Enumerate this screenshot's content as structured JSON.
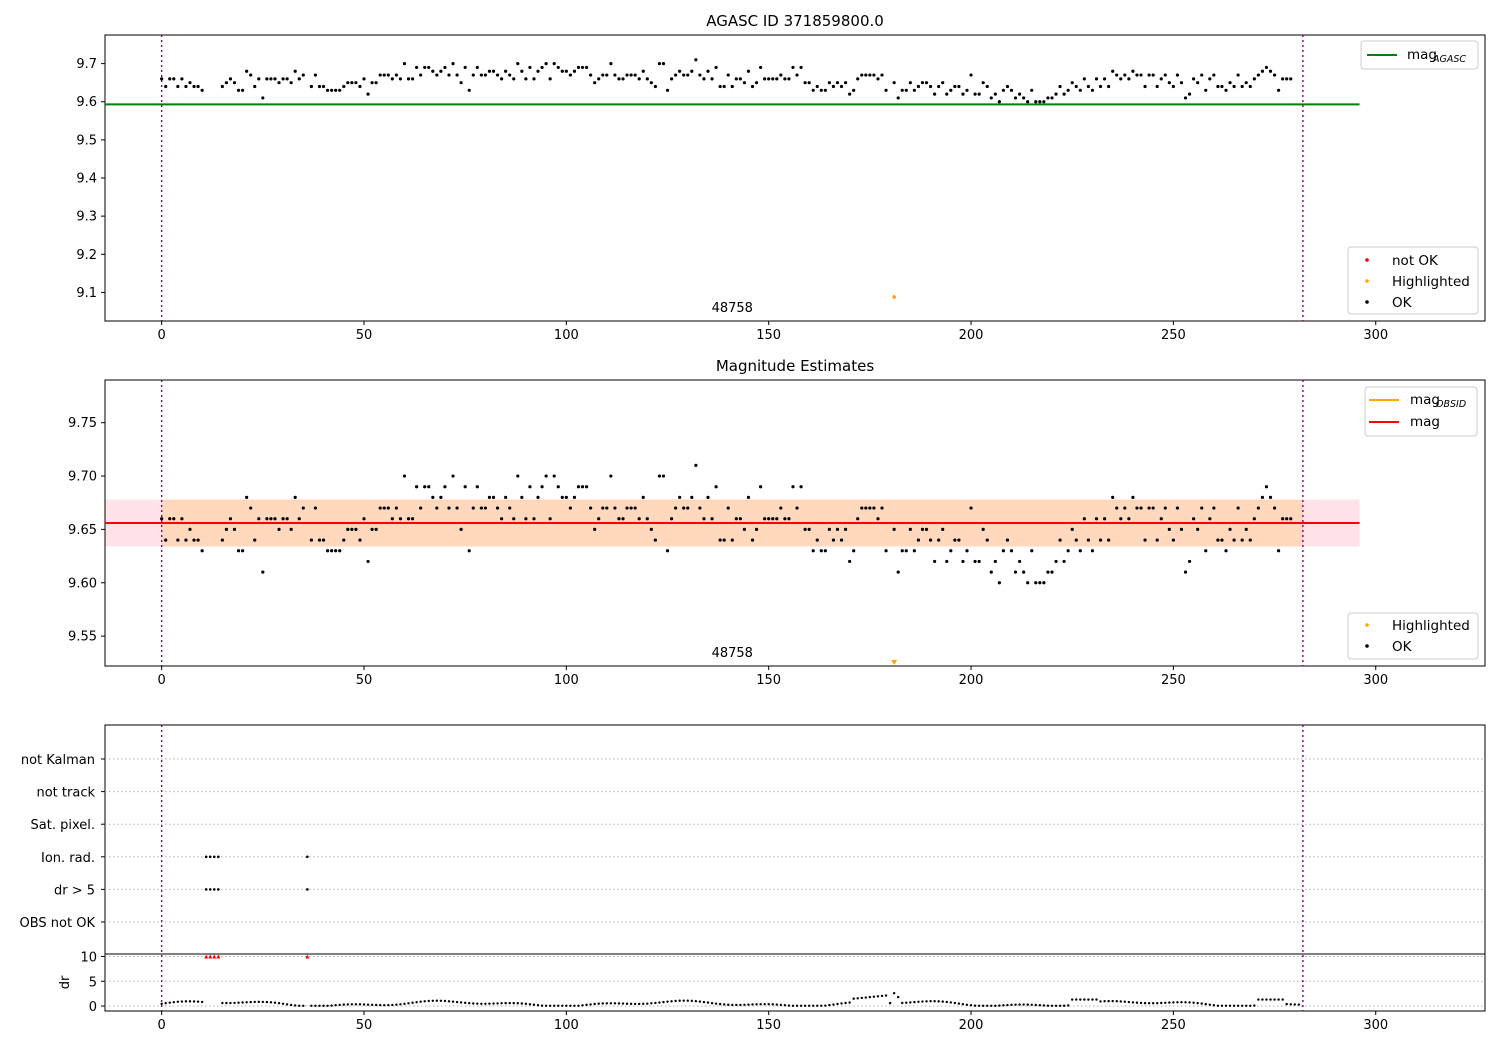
{
  "chart_data": [
    {
      "type": "scatter",
      "title": "AGASC ID 371859800.0",
      "xlim": [
        -14,
        327
      ],
      "ylim": [
        9.025,
        9.775
      ],
      "xticks": [
        0,
        50,
        100,
        150,
        200,
        250,
        300
      ],
      "yticks": [
        9.1,
        9.2,
        9.3,
        9.4,
        9.5,
        9.6,
        9.7
      ],
      "obsid_label": {
        "text": "48758",
        "x": 141
      },
      "vlines": [
        0,
        282
      ],
      "hline": {
        "name": "mag_AGASC",
        "y": 9.593,
        "x_range": [
          -14,
          296
        ],
        "color": "#008000"
      },
      "legend_upper": [
        {
          "label": "mag",
          "sub": "AGASC",
          "color": "#008000",
          "kind": "line"
        }
      ],
      "legend_lower": [
        {
          "label": "not OK",
          "color": "#ff0000",
          "kind": "dot"
        },
        {
          "label": "Highlighted",
          "color": "#ffa500",
          "kind": "dot"
        },
        {
          "label": "OK",
          "color": "#000000",
          "kind": "dot"
        }
      ],
      "highlighted_points": [
        {
          "x": 181,
          "y": 9.088
        }
      ],
      "ok_points": [
        [
          0,
          9.66
        ],
        [
          1,
          9.64
        ],
        [
          2,
          9.66
        ],
        [
          3,
          9.66
        ],
        [
          4,
          9.64
        ],
        [
          5,
          9.66
        ],
        [
          6,
          9.64
        ],
        [
          7,
          9.65
        ],
        [
          8,
          9.64
        ],
        [
          9,
          9.64
        ],
        [
          10,
          9.63
        ],
        [
          15,
          9.64
        ],
        [
          16,
          9.65
        ],
        [
          17,
          9.66
        ],
        [
          18,
          9.65
        ],
        [
          19,
          9.63
        ],
        [
          20,
          9.63
        ],
        [
          21,
          9.68
        ],
        [
          22,
          9.67
        ],
        [
          23,
          9.64
        ],
        [
          24,
          9.66
        ],
        [
          25,
          9.61
        ],
        [
          26,
          9.66
        ],
        [
          27,
          9.66
        ],
        [
          28,
          9.66
        ],
        [
          29,
          9.65
        ],
        [
          30,
          9.66
        ],
        [
          31,
          9.66
        ],
        [
          32,
          9.65
        ],
        [
          33,
          9.68
        ],
        [
          34,
          9.66
        ],
        [
          35,
          9.67
        ],
        [
          37,
          9.64
        ],
        [
          38,
          9.67
        ],
        [
          39,
          9.64
        ],
        [
          40,
          9.64
        ],
        [
          41,
          9.63
        ],
        [
          42,
          9.63
        ],
        [
          43,
          9.63
        ],
        [
          44,
          9.63
        ],
        [
          45,
          9.64
        ],
        [
          46,
          9.65
        ],
        [
          47,
          9.65
        ],
        [
          48,
          9.65
        ],
        [
          49,
          9.64
        ],
        [
          50,
          9.66
        ],
        [
          51,
          9.62
        ],
        [
          52,
          9.65
        ],
        [
          53,
          9.65
        ],
        [
          54,
          9.67
        ],
        [
          55,
          9.67
        ],
        [
          56,
          9.67
        ],
        [
          57,
          9.66
        ],
        [
          58,
          9.67
        ],
        [
          59,
          9.66
        ],
        [
          60,
          9.7
        ],
        [
          61,
          9.66
        ],
        [
          62,
          9.66
        ],
        [
          63,
          9.69
        ],
        [
          64,
          9.67
        ],
        [
          65,
          9.69
        ],
        [
          66,
          9.69
        ],
        [
          67,
          9.68
        ],
        [
          68,
          9.67
        ],
        [
          69,
          9.68
        ],
        [
          70,
          9.69
        ],
        [
          71,
          9.67
        ],
        [
          72,
          9.7
        ],
        [
          73,
          9.67
        ],
        [
          74,
          9.65
        ],
        [
          75,
          9.69
        ],
        [
          76,
          9.63
        ],
        [
          77,
          9.67
        ],
        [
          78,
          9.69
        ],
        [
          79,
          9.67
        ],
        [
          80,
          9.67
        ],
        [
          81,
          9.68
        ],
        [
          82,
          9.68
        ],
        [
          83,
          9.67
        ],
        [
          84,
          9.66
        ],
        [
          85,
          9.68
        ],
        [
          86,
          9.67
        ],
        [
          87,
          9.66
        ],
        [
          88,
          9.7
        ],
        [
          89,
          9.68
        ],
        [
          90,
          9.66
        ],
        [
          91,
          9.69
        ],
        [
          92,
          9.66
        ],
        [
          93,
          9.68
        ],
        [
          94,
          9.69
        ],
        [
          95,
          9.7
        ],
        [
          96,
          9.66
        ],
        [
          97,
          9.7
        ],
        [
          98,
          9.69
        ],
        [
          99,
          9.68
        ],
        [
          100,
          9.68
        ],
        [
          101,
          9.67
        ],
        [
          102,
          9.68
        ],
        [
          103,
          9.69
        ],
        [
          104,
          9.69
        ],
        [
          105,
          9.69
        ],
        [
          106,
          9.67
        ],
        [
          107,
          9.65
        ],
        [
          108,
          9.66
        ],
        [
          109,
          9.67
        ],
        [
          110,
          9.67
        ],
        [
          111,
          9.7
        ],
        [
          112,
          9.67
        ],
        [
          113,
          9.66
        ],
        [
          114,
          9.66
        ],
        [
          115,
          9.67
        ],
        [
          116,
          9.67
        ],
        [
          117,
          9.67
        ],
        [
          118,
          9.66
        ],
        [
          119,
          9.68
        ],
        [
          120,
          9.66
        ],
        [
          121,
          9.65
        ],
        [
          122,
          9.64
        ],
        [
          123,
          9.7
        ],
        [
          124,
          9.7
        ],
        [
          125,
          9.63
        ],
        [
          126,
          9.66
        ],
        [
          127,
          9.67
        ],
        [
          128,
          9.68
        ],
        [
          129,
          9.67
        ],
        [
          130,
          9.67
        ],
        [
          131,
          9.68
        ],
        [
          132,
          9.71
        ],
        [
          133,
          9.67
        ],
        [
          134,
          9.66
        ],
        [
          135,
          9.68
        ],
        [
          136,
          9.66
        ],
        [
          137,
          9.69
        ],
        [
          138,
          9.64
        ],
        [
          139,
          9.64
        ],
        [
          140,
          9.67
        ],
        [
          141,
          9.64
        ],
        [
          142,
          9.66
        ],
        [
          143,
          9.66
        ],
        [
          144,
          9.65
        ],
        [
          145,
          9.68
        ],
        [
          146,
          9.64
        ],
        [
          147,
          9.65
        ],
        [
          148,
          9.69
        ],
        [
          149,
          9.66
        ],
        [
          150,
          9.66
        ],
        [
          151,
          9.66
        ],
        [
          152,
          9.66
        ],
        [
          153,
          9.67
        ],
        [
          154,
          9.66
        ],
        [
          155,
          9.66
        ],
        [
          156,
          9.69
        ],
        [
          157,
          9.67
        ],
        [
          158,
          9.69
        ],
        [
          159,
          9.65
        ],
        [
          160,
          9.65
        ],
        [
          161,
          9.63
        ],
        [
          162,
          9.64
        ],
        [
          163,
          9.63
        ],
        [
          164,
          9.63
        ],
        [
          165,
          9.65
        ],
        [
          166,
          9.64
        ],
        [
          167,
          9.65
        ],
        [
          168,
          9.64
        ],
        [
          169,
          9.65
        ],
        [
          170,
          9.62
        ],
        [
          171,
          9.63
        ],
        [
          172,
          9.66
        ],
        [
          173,
          9.67
        ],
        [
          174,
          9.67
        ],
        [
          175,
          9.67
        ],
        [
          176,
          9.67
        ],
        [
          177,
          9.66
        ],
        [
          178,
          9.67
        ],
        [
          179,
          9.63
        ],
        [
          181,
          9.65
        ],
        [
          182,
          9.61
        ],
        [
          183,
          9.63
        ],
        [
          184,
          9.63
        ],
        [
          185,
          9.65
        ],
        [
          186,
          9.63
        ],
        [
          187,
          9.64
        ],
        [
          188,
          9.65
        ],
        [
          189,
          9.65
        ],
        [
          190,
          9.64
        ],
        [
          191,
          9.62
        ],
        [
          192,
          9.64
        ],
        [
          193,
          9.65
        ],
        [
          194,
          9.62
        ],
        [
          195,
          9.63
        ],
        [
          196,
          9.64
        ],
        [
          197,
          9.64
        ],
        [
          198,
          9.62
        ],
        [
          199,
          9.63
        ],
        [
          200,
          9.67
        ],
        [
          201,
          9.62
        ],
        [
          202,
          9.62
        ],
        [
          203,
          9.65
        ],
        [
          204,
          9.64
        ],
        [
          205,
          9.61
        ],
        [
          206,
          9.62
        ],
        [
          207,
          9.6
        ],
        [
          208,
          9.63
        ],
        [
          209,
          9.64
        ],
        [
          210,
          9.63
        ],
        [
          211,
          9.61
        ],
        [
          212,
          9.62
        ],
        [
          213,
          9.61
        ],
        [
          214,
          9.6
        ],
        [
          215,
          9.63
        ],
        [
          216,
          9.6
        ],
        [
          217,
          9.6
        ],
        [
          218,
          9.6
        ],
        [
          219,
          9.61
        ],
        [
          220,
          9.61
        ],
        [
          221,
          9.62
        ],
        [
          222,
          9.64
        ],
        [
          223,
          9.62
        ],
        [
          224,
          9.63
        ],
        [
          225,
          9.65
        ],
        [
          226,
          9.64
        ],
        [
          227,
          9.63
        ],
        [
          228,
          9.66
        ],
        [
          229,
          9.64
        ],
        [
          230,
          9.63
        ],
        [
          231,
          9.66
        ],
        [
          232,
          9.64
        ],
        [
          233,
          9.66
        ],
        [
          234,
          9.64
        ],
        [
          235,
          9.68
        ],
        [
          236,
          9.67
        ],
        [
          237,
          9.66
        ],
        [
          238,
          9.67
        ],
        [
          239,
          9.66
        ],
        [
          240,
          9.68
        ],
        [
          241,
          9.67
        ],
        [
          242,
          9.67
        ],
        [
          243,
          9.64
        ],
        [
          244,
          9.67
        ],
        [
          245,
          9.67
        ],
        [
          246,
          9.64
        ],
        [
          247,
          9.66
        ],
        [
          248,
          9.67
        ],
        [
          249,
          9.65
        ],
        [
          250,
          9.64
        ],
        [
          251,
          9.67
        ],
        [
          252,
          9.65
        ],
        [
          253,
          9.61
        ],
        [
          254,
          9.62
        ],
        [
          255,
          9.66
        ],
        [
          256,
          9.65
        ],
        [
          257,
          9.67
        ],
        [
          258,
          9.63
        ],
        [
          259,
          9.66
        ],
        [
          260,
          9.67
        ],
        [
          261,
          9.64
        ],
        [
          262,
          9.64
        ],
        [
          263,
          9.63
        ],
        [
          264,
          9.65
        ],
        [
          265,
          9.64
        ],
        [
          266,
          9.67
        ],
        [
          267,
          9.64
        ],
        [
          268,
          9.65
        ],
        [
          269,
          9.64
        ],
        [
          270,
          9.66
        ],
        [
          271,
          9.67
        ],
        [
          272,
          9.68
        ],
        [
          273,
          9.69
        ],
        [
          274,
          9.68
        ],
        [
          275,
          9.67
        ],
        [
          276,
          9.63
        ],
        [
          277,
          9.66
        ],
        [
          278,
          9.66
        ],
        [
          279,
          9.66
        ]
      ]
    },
    {
      "type": "scatter",
      "title": "Magnitude Estimates",
      "xlim": [
        -14,
        327
      ],
      "ylim": [
        9.522,
        9.79
      ],
      "xticks": [
        0,
        50,
        100,
        150,
        200,
        250,
        300
      ],
      "yticks": [
        9.55,
        9.6,
        9.65,
        9.7,
        9.75
      ],
      "obsid_label": {
        "text": "48758",
        "x": 141
      },
      "vlines": [
        0,
        282
      ],
      "mag_line": {
        "name": "mag",
        "y": 9.656,
        "x_range": [
          -14,
          296
        ],
        "color": "#ff0000"
      },
      "mag_band": {
        "y_range": [
          9.634,
          9.678
        ],
        "x_range": [
          -14,
          296
        ],
        "color": "#ffc0cb"
      },
      "obsid_band": {
        "y_range": [
          9.634,
          9.678
        ],
        "x_range": [
          0,
          282
        ],
        "color": "#ffa500"
      },
      "legend_upper": [
        {
          "label": "mag",
          "sub": "OBSID",
          "color": "#ffa500",
          "kind": "line"
        },
        {
          "label": "mag",
          "sub": "",
          "color": "#ff0000",
          "kind": "line"
        }
      ],
      "legend_lower": [
        {
          "label": "Highlighted",
          "color": "#ffa500",
          "kind": "dot"
        },
        {
          "label": "OK",
          "color": "#000000",
          "kind": "dot"
        }
      ],
      "highlighted_points": [
        {
          "x": 181,
          "y": 9.524,
          "marker": "triangle-down"
        }
      ],
      "ok_points": "same series as panel 1 (OK points)"
    },
    {
      "type": "scatter",
      "title": "",
      "xlim": [
        -14,
        327
      ],
      "xticks": [
        0,
        50,
        100,
        150,
        200,
        250,
        300
      ],
      "flag_labels": [
        "not Kalman",
        "not track",
        "Sat. pixel.",
        "Ion. rad.",
        "dr > 5",
        "OBS not OK"
      ],
      "flag_points": {
        "Ion. rad.": [
          11,
          12,
          13,
          14,
          36
        ],
        "dr > 5": [
          11,
          12,
          13,
          14,
          36
        ]
      },
      "dr_axis": {
        "ylabel": "dr",
        "yticks": [
          0,
          5,
          10
        ],
        "ylim": [
          -1,
          10.5
        ]
      },
      "dr_high_points": [
        11,
        12,
        13,
        14,
        36
      ],
      "dr_values": "see script series",
      "vlines": [
        0,
        282
      ]
    }
  ]
}
